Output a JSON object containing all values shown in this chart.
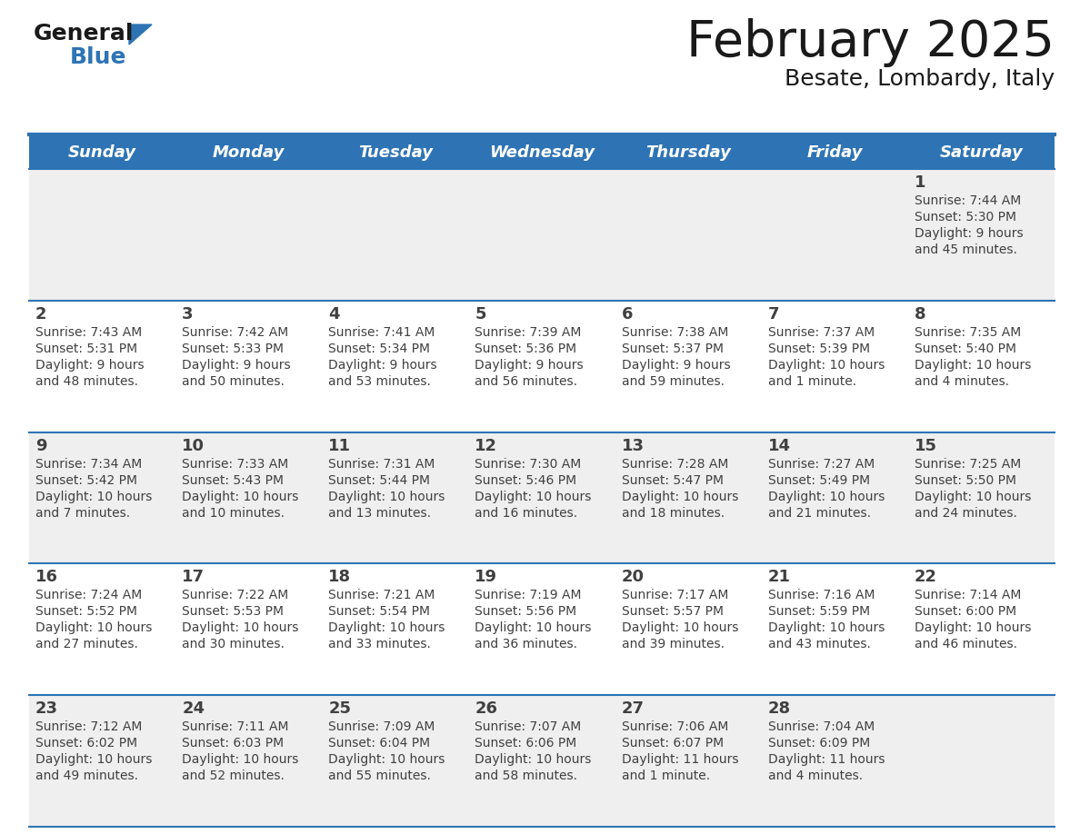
{
  "title": "February 2025",
  "subtitle": "Besate, Lombardy, Italy",
  "header_bg": "#2E74B5",
  "header_text_color": "#FFFFFF",
  "row_bg_odd": "#EFEFEF",
  "row_bg_even": "#FFFFFF",
  "border_color": "#2E74B5",
  "day_num_color": "#404040",
  "info_color": "#404040",
  "day_names": [
    "Sunday",
    "Monday",
    "Tuesday",
    "Wednesday",
    "Thursday",
    "Friday",
    "Saturday"
  ],
  "calendar": [
    [
      null,
      null,
      null,
      null,
      null,
      null,
      1
    ],
    [
      2,
      3,
      4,
      5,
      6,
      7,
      8
    ],
    [
      9,
      10,
      11,
      12,
      13,
      14,
      15
    ],
    [
      16,
      17,
      18,
      19,
      20,
      21,
      22
    ],
    [
      23,
      24,
      25,
      26,
      27,
      28,
      null
    ]
  ],
  "day_data": {
    "1": {
      "sunrise": "7:44 AM",
      "sunset": "5:30 PM",
      "daylight_line1": "Daylight: 9 hours",
      "daylight_line2": "and 45 minutes."
    },
    "2": {
      "sunrise": "7:43 AM",
      "sunset": "5:31 PM",
      "daylight_line1": "Daylight: 9 hours",
      "daylight_line2": "and 48 minutes."
    },
    "3": {
      "sunrise": "7:42 AM",
      "sunset": "5:33 PM",
      "daylight_line1": "Daylight: 9 hours",
      "daylight_line2": "and 50 minutes."
    },
    "4": {
      "sunrise": "7:41 AM",
      "sunset": "5:34 PM",
      "daylight_line1": "Daylight: 9 hours",
      "daylight_line2": "and 53 minutes."
    },
    "5": {
      "sunrise": "7:39 AM",
      "sunset": "5:36 PM",
      "daylight_line1": "Daylight: 9 hours",
      "daylight_line2": "and 56 minutes."
    },
    "6": {
      "sunrise": "7:38 AM",
      "sunset": "5:37 PM",
      "daylight_line1": "Daylight: 9 hours",
      "daylight_line2": "and 59 minutes."
    },
    "7": {
      "sunrise": "7:37 AM",
      "sunset": "5:39 PM",
      "daylight_line1": "Daylight: 10 hours",
      "daylight_line2": "and 1 minute."
    },
    "8": {
      "sunrise": "7:35 AM",
      "sunset": "5:40 PM",
      "daylight_line1": "Daylight: 10 hours",
      "daylight_line2": "and 4 minutes."
    },
    "9": {
      "sunrise": "7:34 AM",
      "sunset": "5:42 PM",
      "daylight_line1": "Daylight: 10 hours",
      "daylight_line2": "and 7 minutes."
    },
    "10": {
      "sunrise": "7:33 AM",
      "sunset": "5:43 PM",
      "daylight_line1": "Daylight: 10 hours",
      "daylight_line2": "and 10 minutes."
    },
    "11": {
      "sunrise": "7:31 AM",
      "sunset": "5:44 PM",
      "daylight_line1": "Daylight: 10 hours",
      "daylight_line2": "and 13 minutes."
    },
    "12": {
      "sunrise": "7:30 AM",
      "sunset": "5:46 PM",
      "daylight_line1": "Daylight: 10 hours",
      "daylight_line2": "and 16 minutes."
    },
    "13": {
      "sunrise": "7:28 AM",
      "sunset": "5:47 PM",
      "daylight_line1": "Daylight: 10 hours",
      "daylight_line2": "and 18 minutes."
    },
    "14": {
      "sunrise": "7:27 AM",
      "sunset": "5:49 PM",
      "daylight_line1": "Daylight: 10 hours",
      "daylight_line2": "and 21 minutes."
    },
    "15": {
      "sunrise": "7:25 AM",
      "sunset": "5:50 PM",
      "daylight_line1": "Daylight: 10 hours",
      "daylight_line2": "and 24 minutes."
    },
    "16": {
      "sunrise": "7:24 AM",
      "sunset": "5:52 PM",
      "daylight_line1": "Daylight: 10 hours",
      "daylight_line2": "and 27 minutes."
    },
    "17": {
      "sunrise": "7:22 AM",
      "sunset": "5:53 PM",
      "daylight_line1": "Daylight: 10 hours",
      "daylight_line2": "and 30 minutes."
    },
    "18": {
      "sunrise": "7:21 AM",
      "sunset": "5:54 PM",
      "daylight_line1": "Daylight: 10 hours",
      "daylight_line2": "and 33 minutes."
    },
    "19": {
      "sunrise": "7:19 AM",
      "sunset": "5:56 PM",
      "daylight_line1": "Daylight: 10 hours",
      "daylight_line2": "and 36 minutes."
    },
    "20": {
      "sunrise": "7:17 AM",
      "sunset": "5:57 PM",
      "daylight_line1": "Daylight: 10 hours",
      "daylight_line2": "and 39 minutes."
    },
    "21": {
      "sunrise": "7:16 AM",
      "sunset": "5:59 PM",
      "daylight_line1": "Daylight: 10 hours",
      "daylight_line2": "and 43 minutes."
    },
    "22": {
      "sunrise": "7:14 AM",
      "sunset": "6:00 PM",
      "daylight_line1": "Daylight: 10 hours",
      "daylight_line2": "and 46 minutes."
    },
    "23": {
      "sunrise": "7:12 AM",
      "sunset": "6:02 PM",
      "daylight_line1": "Daylight: 10 hours",
      "daylight_line2": "and 49 minutes."
    },
    "24": {
      "sunrise": "7:11 AM",
      "sunset": "6:03 PM",
      "daylight_line1": "Daylight: 10 hours",
      "daylight_line2": "and 52 minutes."
    },
    "25": {
      "sunrise": "7:09 AM",
      "sunset": "6:04 PM",
      "daylight_line1": "Daylight: 10 hours",
      "daylight_line2": "and 55 minutes."
    },
    "26": {
      "sunrise": "7:07 AM",
      "sunset": "6:06 PM",
      "daylight_line1": "Daylight: 10 hours",
      "daylight_line2": "and 58 minutes."
    },
    "27": {
      "sunrise": "7:06 AM",
      "sunset": "6:07 PM",
      "daylight_line1": "Daylight: 11 hours",
      "daylight_line2": "and 1 minute."
    },
    "28": {
      "sunrise": "7:04 AM",
      "sunset": "6:09 PM",
      "daylight_line1": "Daylight: 11 hours",
      "daylight_line2": "and 4 minutes."
    }
  },
  "logo_general_color": "#1a1a1a",
  "logo_blue_color": "#2E74B5",
  "logo_triangle_color": "#2E74B5",
  "title_color": "#1a1a1a",
  "subtitle_color": "#1a1a1a"
}
